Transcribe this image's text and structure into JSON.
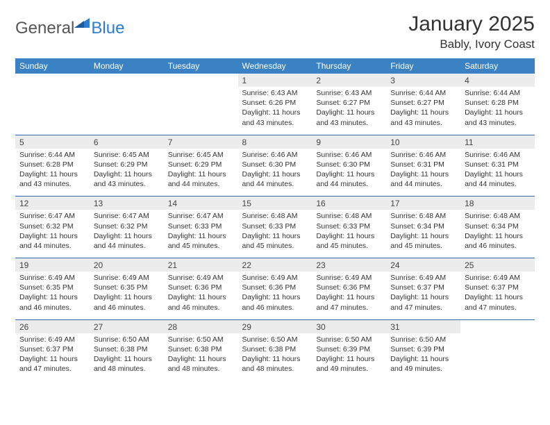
{
  "brand": {
    "part1": "General",
    "part2": "Blue"
  },
  "title": "January 2025",
  "location": "Bably, Ivory Coast",
  "colors": {
    "header_bg": "#3b82c4",
    "header_text": "#ffffff",
    "daynum_bg": "#ececec",
    "rule": "#2f6aa8",
    "brand_blue": "#2b7cd3"
  },
  "day_names": [
    "Sunday",
    "Monday",
    "Tuesday",
    "Wednesday",
    "Thursday",
    "Friday",
    "Saturday"
  ],
  "weeks": [
    {
      "nums": [
        "",
        "",
        "",
        "1",
        "2",
        "3",
        "4"
      ],
      "cells": [
        null,
        null,
        null,
        {
          "sr": "6:43 AM",
          "ss": "6:26 PM",
          "dl": "11 hours and 43 minutes."
        },
        {
          "sr": "6:43 AM",
          "ss": "6:27 PM",
          "dl": "11 hours and 43 minutes."
        },
        {
          "sr": "6:44 AM",
          "ss": "6:27 PM",
          "dl": "11 hours and 43 minutes."
        },
        {
          "sr": "6:44 AM",
          "ss": "6:28 PM",
          "dl": "11 hours and 43 minutes."
        }
      ]
    },
    {
      "nums": [
        "5",
        "6",
        "7",
        "8",
        "9",
        "10",
        "11"
      ],
      "cells": [
        {
          "sr": "6:44 AM",
          "ss": "6:28 PM",
          "dl": "11 hours and 43 minutes."
        },
        {
          "sr": "6:45 AM",
          "ss": "6:29 PM",
          "dl": "11 hours and 43 minutes."
        },
        {
          "sr": "6:45 AM",
          "ss": "6:29 PM",
          "dl": "11 hours and 44 minutes."
        },
        {
          "sr": "6:46 AM",
          "ss": "6:30 PM",
          "dl": "11 hours and 44 minutes."
        },
        {
          "sr": "6:46 AM",
          "ss": "6:30 PM",
          "dl": "11 hours and 44 minutes."
        },
        {
          "sr": "6:46 AM",
          "ss": "6:31 PM",
          "dl": "11 hours and 44 minutes."
        },
        {
          "sr": "6:46 AM",
          "ss": "6:31 PM",
          "dl": "11 hours and 44 minutes."
        }
      ]
    },
    {
      "nums": [
        "12",
        "13",
        "14",
        "15",
        "16",
        "17",
        "18"
      ],
      "cells": [
        {
          "sr": "6:47 AM",
          "ss": "6:32 PM",
          "dl": "11 hours and 44 minutes."
        },
        {
          "sr": "6:47 AM",
          "ss": "6:32 PM",
          "dl": "11 hours and 44 minutes."
        },
        {
          "sr": "6:47 AM",
          "ss": "6:33 PM",
          "dl": "11 hours and 45 minutes."
        },
        {
          "sr": "6:48 AM",
          "ss": "6:33 PM",
          "dl": "11 hours and 45 minutes."
        },
        {
          "sr": "6:48 AM",
          "ss": "6:33 PM",
          "dl": "11 hours and 45 minutes."
        },
        {
          "sr": "6:48 AM",
          "ss": "6:34 PM",
          "dl": "11 hours and 45 minutes."
        },
        {
          "sr": "6:48 AM",
          "ss": "6:34 PM",
          "dl": "11 hours and 46 minutes."
        }
      ]
    },
    {
      "nums": [
        "19",
        "20",
        "21",
        "22",
        "23",
        "24",
        "25"
      ],
      "cells": [
        {
          "sr": "6:49 AM",
          "ss": "6:35 PM",
          "dl": "11 hours and 46 minutes."
        },
        {
          "sr": "6:49 AM",
          "ss": "6:35 PM",
          "dl": "11 hours and 46 minutes."
        },
        {
          "sr": "6:49 AM",
          "ss": "6:36 PM",
          "dl": "11 hours and 46 minutes."
        },
        {
          "sr": "6:49 AM",
          "ss": "6:36 PM",
          "dl": "11 hours and 46 minutes."
        },
        {
          "sr": "6:49 AM",
          "ss": "6:36 PM",
          "dl": "11 hours and 47 minutes."
        },
        {
          "sr": "6:49 AM",
          "ss": "6:37 PM",
          "dl": "11 hours and 47 minutes."
        },
        {
          "sr": "6:49 AM",
          "ss": "6:37 PM",
          "dl": "11 hours and 47 minutes."
        }
      ]
    },
    {
      "nums": [
        "26",
        "27",
        "28",
        "29",
        "30",
        "31",
        ""
      ],
      "cells": [
        {
          "sr": "6:49 AM",
          "ss": "6:37 PM",
          "dl": "11 hours and 47 minutes."
        },
        {
          "sr": "6:50 AM",
          "ss": "6:38 PM",
          "dl": "11 hours and 48 minutes."
        },
        {
          "sr": "6:50 AM",
          "ss": "6:38 PM",
          "dl": "11 hours and 48 minutes."
        },
        {
          "sr": "6:50 AM",
          "ss": "6:38 PM",
          "dl": "11 hours and 48 minutes."
        },
        {
          "sr": "6:50 AM",
          "ss": "6:39 PM",
          "dl": "11 hours and 49 minutes."
        },
        {
          "sr": "6:50 AM",
          "ss": "6:39 PM",
          "dl": "11 hours and 49 minutes."
        },
        null
      ]
    }
  ],
  "labels": {
    "sunrise": "Sunrise:",
    "sunset": "Sunset:",
    "daylight": "Daylight:"
  }
}
